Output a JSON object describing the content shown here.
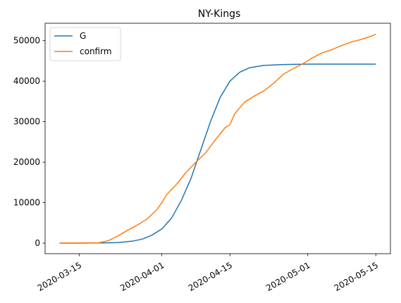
{
  "chart_data": {
    "type": "line",
    "title": "NY-Kings",
    "xlabel": "",
    "ylabel": "",
    "x_range": [
      "2020-03-08",
      "2020-05-18"
    ],
    "ylim": [
      -2600,
      54300
    ],
    "x_ticks": [
      {
        "date": "2020-03-15",
        "label": "2020-03-15"
      },
      {
        "date": "2020-04-01",
        "label": "2020-04-01"
      },
      {
        "date": "2020-04-15",
        "label": "2020-04-15"
      },
      {
        "date": "2020-05-01",
        "label": "2020-05-01"
      },
      {
        "date": "2020-05-15",
        "label": "2020-05-15"
      }
    ],
    "y_ticks": [
      0,
      10000,
      20000,
      30000,
      40000,
      50000
    ],
    "grid": false,
    "legend_position": "upper-left",
    "series": [
      {
        "name": "G",
        "color": "#1f77b4",
        "points": [
          [
            "2020-03-11",
            0
          ],
          [
            "2020-03-16",
            20
          ],
          [
            "2020-03-20",
            50
          ],
          [
            "2020-03-23",
            150
          ],
          [
            "2020-03-26",
            500
          ],
          [
            "2020-03-28",
            1000
          ],
          [
            "2020-03-30",
            2000
          ],
          [
            "2020-04-01",
            3500
          ],
          [
            "2020-04-03",
            6200
          ],
          [
            "2020-04-05",
            10500
          ],
          [
            "2020-04-07",
            16000
          ],
          [
            "2020-04-09",
            23000
          ],
          [
            "2020-04-11",
            30000
          ],
          [
            "2020-04-13",
            36000
          ],
          [
            "2020-04-15",
            40000
          ],
          [
            "2020-04-17",
            42200
          ],
          [
            "2020-04-19",
            43300
          ],
          [
            "2020-04-22",
            43900
          ],
          [
            "2020-04-26",
            44100
          ],
          [
            "2020-05-01",
            44200
          ],
          [
            "2020-05-15",
            44200
          ]
        ]
      },
      {
        "name": "confirm",
        "color": "#ff7f0e",
        "points": [
          [
            "2020-03-11",
            0
          ],
          [
            "2020-03-19",
            100
          ],
          [
            "2020-03-21",
            600
          ],
          [
            "2020-03-23",
            1800
          ],
          [
            "2020-03-25",
            3200
          ],
          [
            "2020-03-27",
            4500
          ],
          [
            "2020-03-29",
            6000
          ],
          [
            "2020-03-31",
            8300
          ],
          [
            "2020-04-01",
            10000
          ],
          [
            "2020-04-02",
            12000
          ],
          [
            "2020-04-04",
            14500
          ],
          [
            "2020-04-06",
            17500
          ],
          [
            "2020-04-08",
            20000
          ],
          [
            "2020-04-10",
            22300
          ],
          [
            "2020-04-12",
            25500
          ],
          [
            "2020-04-14",
            28500
          ],
          [
            "2020-04-15",
            29300
          ],
          [
            "2020-04-16",
            32000
          ],
          [
            "2020-04-18",
            34800
          ],
          [
            "2020-04-20",
            36300
          ],
          [
            "2020-04-22",
            37600
          ],
          [
            "2020-04-24",
            39500
          ],
          [
            "2020-04-26",
            41700
          ],
          [
            "2020-04-28",
            43100
          ],
          [
            "2020-04-30",
            44300
          ],
          [
            "2020-05-02",
            45800
          ],
          [
            "2020-05-04",
            47000
          ],
          [
            "2020-05-06",
            47800
          ],
          [
            "2020-05-08",
            48800
          ],
          [
            "2020-05-10",
            49700
          ],
          [
            "2020-05-12",
            50300
          ],
          [
            "2020-05-14",
            51100
          ],
          [
            "2020-05-15",
            51600
          ]
        ]
      }
    ]
  }
}
